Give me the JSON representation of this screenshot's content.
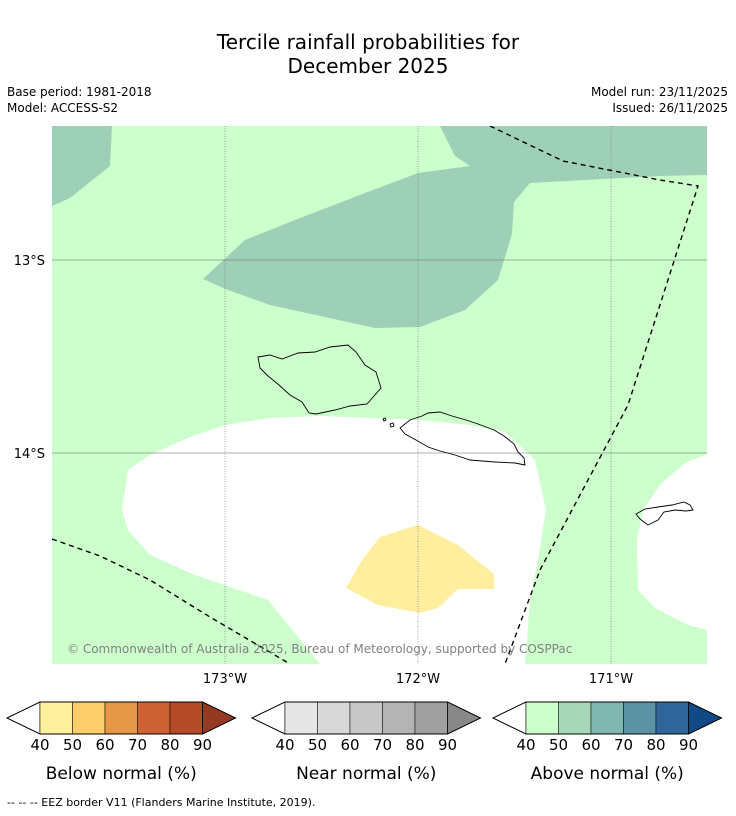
{
  "title_line1": "Tercile rainfall probabilities for",
  "title_line2": "December 2025",
  "meta": {
    "base_period": "Base period: 1981-2018",
    "model": "Model: ACCESS-S2",
    "model_run": "Model run: 23/11/2025",
    "issued": "Issued: 26/11/2025"
  },
  "map": {
    "lat_labels": [
      "13°S",
      "14°S"
    ],
    "lon_labels": [
      "173°W",
      "172°W",
      "171°W"
    ],
    "copyright": "© Commonwealth of Australia 2025, Bureau of Meteorology, supported by COSPPac"
  },
  "legends": [
    {
      "title": "Below normal (%)",
      "ticks": [
        "40",
        "50",
        "60",
        "70",
        "80",
        "90"
      ],
      "colors": [
        "#fff0a0",
        "#fdcd6a",
        "#e59646",
        "#cf6232",
        "#b44b28",
        "#943a23"
      ]
    },
    {
      "title": "Near normal (%)",
      "ticks": [
        "40",
        "50",
        "60",
        "70",
        "80",
        "90"
      ],
      "colors": [
        "#e6e6e6",
        "#d8d8d8",
        "#c8c8c8",
        "#b4b4b4",
        "#a0a0a0",
        "#888888"
      ]
    },
    {
      "title": "Above normal (%)",
      "ticks": [
        "40",
        "50",
        "60",
        "70",
        "80",
        "90"
      ],
      "colors": [
        "#ccffcc",
        "#a6d8b8",
        "#80b8b0",
        "#5a93a3",
        "#31669a",
        "#104a86"
      ]
    }
  ],
  "footnote": "--  --  -- EEZ border V11 (Flanders Marine Institute, 2019)."
}
